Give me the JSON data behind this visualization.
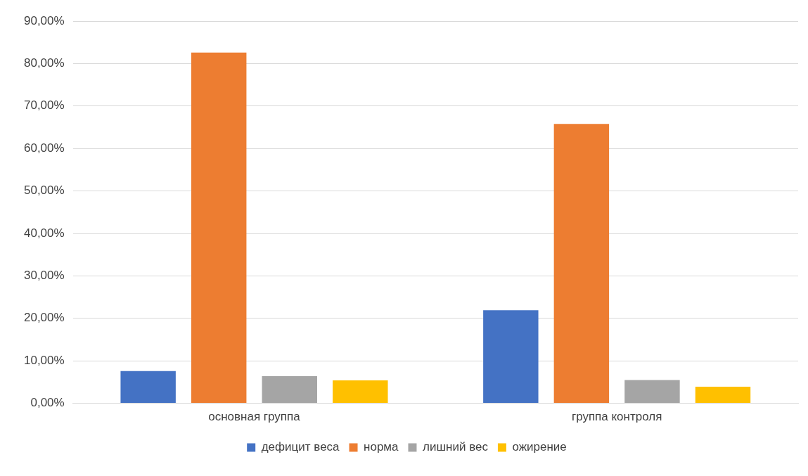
{
  "chart_data": {
    "type": "bar",
    "categories": [
      "основная группа",
      "группа контроля"
    ],
    "series": [
      {
        "name": "дефицит веса",
        "color": "#4472c4",
        "values": [
          7.6,
          21.9
        ]
      },
      {
        "name": "норма",
        "color": "#ed7d31",
        "values": [
          82.6,
          65.8
        ]
      },
      {
        "name": "лишний вес",
        "color": "#a5a5a5",
        "values": [
          6.4,
          5.5
        ]
      },
      {
        "name": "ожирение",
        "color": "#ffc000",
        "values": [
          5.4,
          3.9
        ]
      }
    ],
    "ylim": [
      0,
      90
    ],
    "yticks": [
      {
        "value": 0,
        "label": "0,00%"
      },
      {
        "value": 10,
        "label": "10,00%"
      },
      {
        "value": 20,
        "label": "20,00%"
      },
      {
        "value": 30,
        "label": "30,00%"
      },
      {
        "value": 40,
        "label": "40,00%"
      },
      {
        "value": 50,
        "label": "50,00%"
      },
      {
        "value": 60,
        "label": "60,00%"
      },
      {
        "value": 70,
        "label": "70,00%"
      },
      {
        "value": 80,
        "label": "80,00%"
      },
      {
        "value": 90,
        "label": "90,00%"
      }
    ],
    "grid": "y",
    "legend": "bottom"
  }
}
